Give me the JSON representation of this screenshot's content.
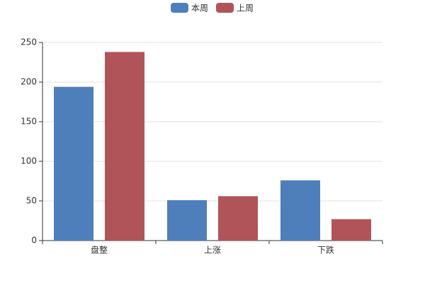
{
  "chart_data": {
    "type": "bar",
    "categories": [
      "盘整",
      "上涨",
      "下跌"
    ],
    "series": [
      {
        "name": "本周",
        "color": "#4f7fbb",
        "values": [
          194,
          51,
          76
        ]
      },
      {
        "name": "上周",
        "color": "#b0545a",
        "values": [
          238,
          56,
          27
        ]
      }
    ],
    "ylim": [
      0,
      250
    ],
    "yticks": [
      0,
      50,
      100,
      150,
      200,
      250
    ],
    "grid": true
  }
}
